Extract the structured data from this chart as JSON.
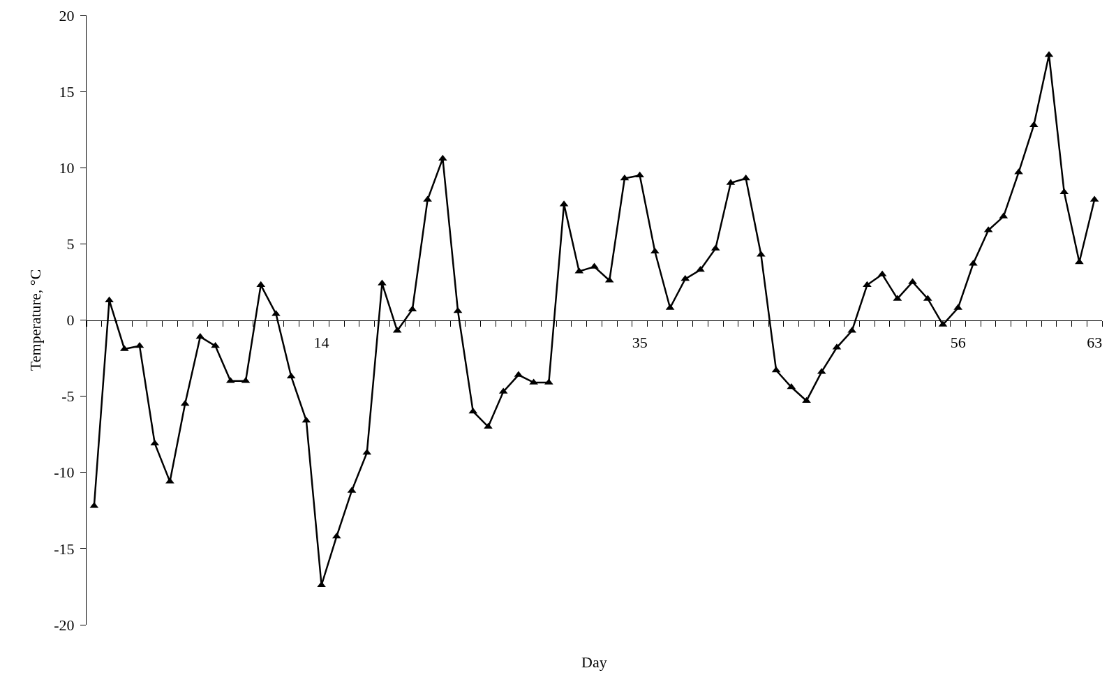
{
  "chart_data": {
    "type": "line",
    "xlabel": "Day",
    "ylabel": "Temperature, °C",
    "categories": [
      null,
      null,
      null,
      null,
      null,
      null,
      null,
      null,
      null,
      null,
      null,
      null,
      null,
      null,
      null,
      "14",
      null,
      null,
      null,
      null,
      null,
      null,
      null,
      null,
      null,
      null,
      null,
      null,
      null,
      null,
      null,
      null,
      null,
      null,
      null,
      null,
      "35",
      null,
      null,
      null,
      null,
      null,
      null,
      null,
      null,
      null,
      null,
      null,
      null,
      null,
      null,
      null,
      null,
      null,
      null,
      null,
      null,
      "56",
      null,
      null,
      null,
      null,
      null,
      null,
      null,
      null,
      "63"
    ],
    "series": [
      {
        "color": "#000000",
        "values": [
          -12.2,
          1.3,
          -1.9,
          -1.7,
          -8.1,
          -10.6,
          -5.5,
          -1.1,
          -1.7,
          -4.0,
          -4.0,
          2.3,
          0.4,
          -3.7,
          -6.6,
          -17.4,
          -14.2,
          -11.2,
          -8.7,
          2.4,
          -0.7,
          0.7,
          7.9,
          10.6,
          0.6,
          -6.0,
          -7.0,
          -4.7,
          -3.6,
          -4.1,
          -4.1,
          7.6,
          3.2,
          3.5,
          2.6,
          9.3,
          9.5,
          4.5,
          0.8,
          2.7,
          3.3,
          4.7,
          9.0,
          9.3,
          4.3,
          -3.3,
          -4.4,
          -5.3,
          -3.4,
          -1.8,
          -0.7,
          2.3,
          3.0,
          1.4,
          2.5,
          1.4,
          -0.3,
          0.8,
          3.7,
          5.9,
          6.8,
          9.7,
          12.8,
          17.4,
          8.4,
          3.8,
          7.9
        ]
      }
    ],
    "ylim": [
      -20,
      20
    ],
    "yticks": [
      -20,
      -15,
      -10,
      -5,
      0,
      5,
      10,
      15,
      20
    ],
    "grid": false,
    "marker": "triangle",
    "line_style": "solid"
  }
}
